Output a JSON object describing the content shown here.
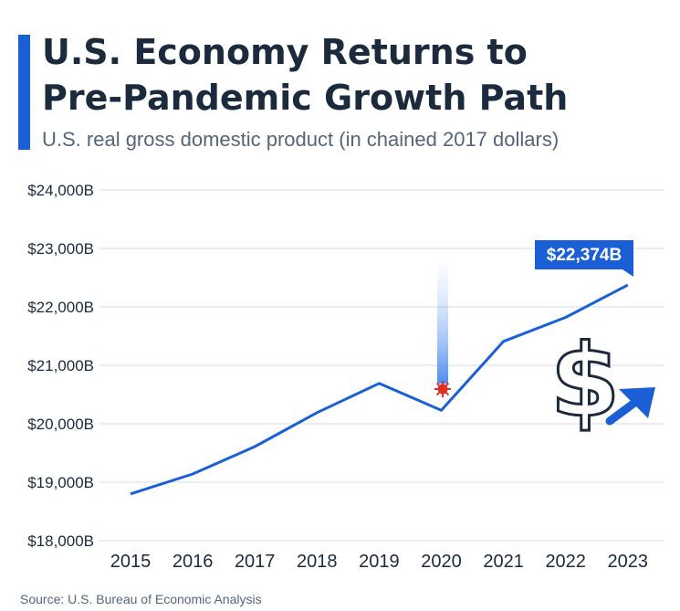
{
  "header": {
    "title_line1": "U.S. Economy Returns to",
    "title_line2": "Pre-Pandemic Growth Path",
    "subtitle": "U.S. real gross domestic product (in chained 2017 dollars)"
  },
  "footer": {
    "source": "Source: U.S. Bureau of Economic Analysis"
  },
  "colors": {
    "accent": "#1a5fd6",
    "line": "#1a5fd6",
    "text": "#1b2a3d",
    "grid": "#d3d9e0",
    "virus": "#e0302a"
  },
  "icons": [
    "virus-icon",
    "dollar-sign-icon",
    "up-right-arrow-icon"
  ],
  "chart_data": {
    "type": "line",
    "x": [
      "2015",
      "2016",
      "2017",
      "2018",
      "2019",
      "2020",
      "2021",
      "2022",
      "2023"
    ],
    "series": [
      {
        "values": [
          18800,
          19140,
          19610,
          20190,
          20690,
          20230,
          21410,
          21820,
          22374
        ]
      }
    ],
    "yticks": [
      18000,
      19000,
      20000,
      21000,
      22000,
      23000,
      24000
    ],
    "ytick_labels": [
      "$18,000B",
      "$19,000B",
      "$20,000B",
      "$21,000B",
      "$22,000B",
      "$23,000B",
      "$24,000B"
    ],
    "ylim": [
      18000,
      24000
    ],
    "grid": true,
    "annotations": [
      {
        "x": "2023",
        "text": "$22,374B"
      }
    ],
    "xlabel": "",
    "ylabel": ""
  }
}
